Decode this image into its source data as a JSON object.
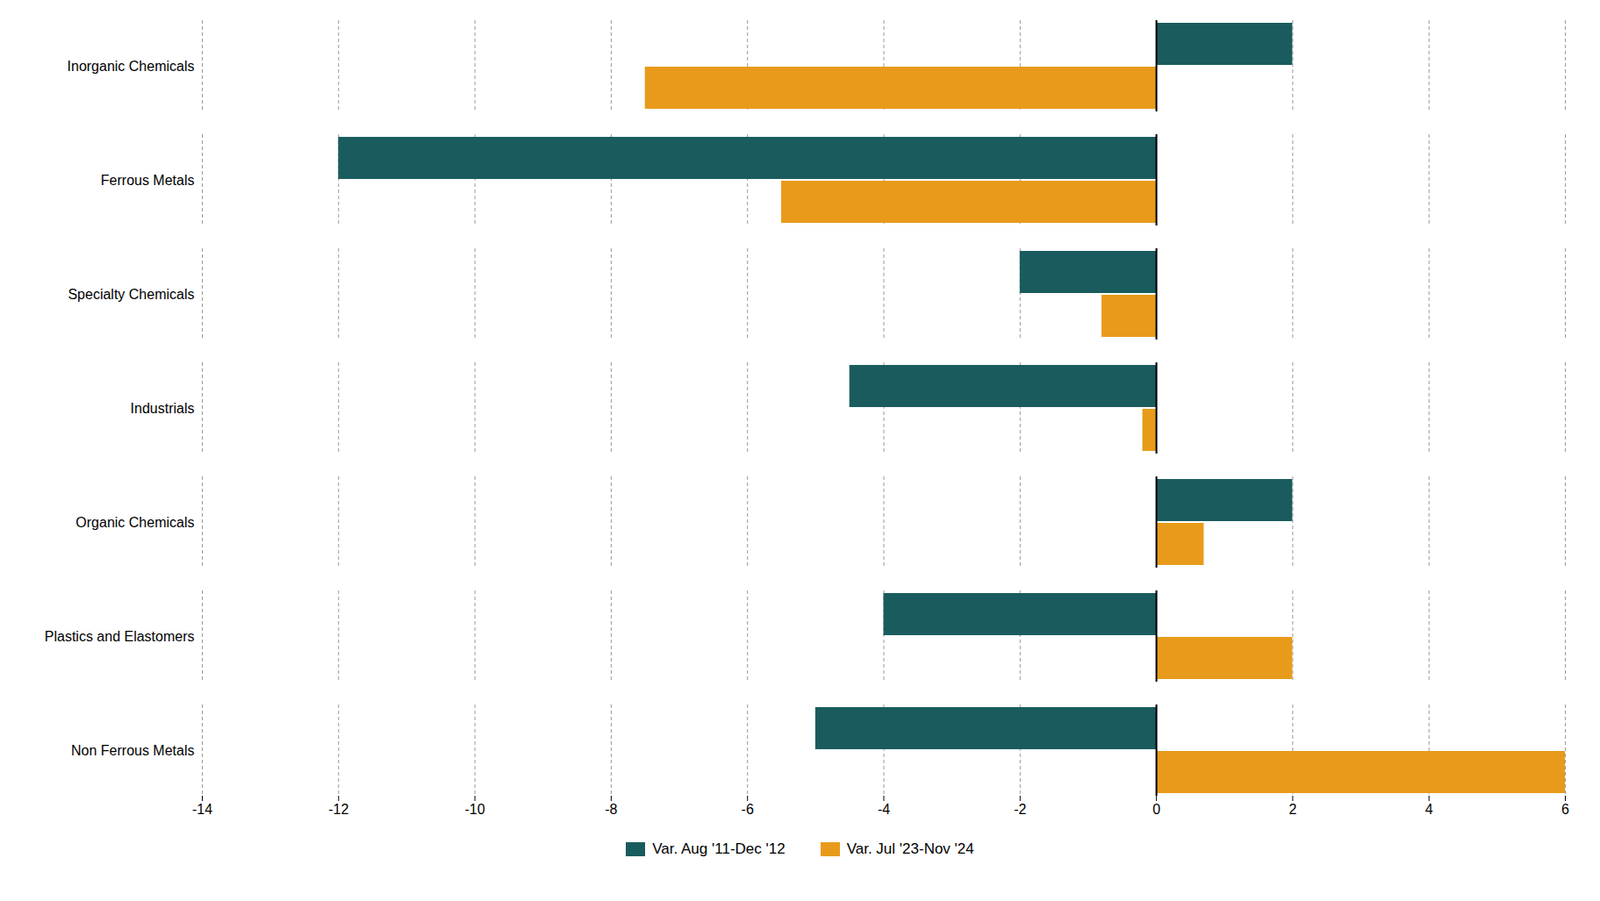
{
  "chart_data": {
    "type": "bar",
    "orientation": "horizontal",
    "categories": [
      "Inorganic Chemicals",
      "Ferrous Metals",
      "Specialty Chemicals",
      "Industrials",
      "Organic Chemicals",
      "Plastics and Elastomers",
      "Non Ferrous Metals"
    ],
    "series": [
      {
        "name": "Var. Aug '11-Dec '12",
        "color": "#1a5c5e",
        "values": [
          2.0,
          -12.0,
          -2.0,
          -4.5,
          2.0,
          -4.0,
          -5.0
        ]
      },
      {
        "name": "Var. Jul '23-Nov '24",
        "color": "#e89b1a",
        "values": [
          -7.5,
          -5.5,
          -0.8,
          -0.2,
          0.7,
          2.0,
          6.0
        ]
      }
    ],
    "xlim": [
      -14,
      6
    ],
    "xticks": [
      -14,
      -12,
      -10,
      -8,
      -6,
      -4,
      -2,
      0,
      2,
      4,
      6
    ],
    "grid": true,
    "legend": "bottom"
  }
}
